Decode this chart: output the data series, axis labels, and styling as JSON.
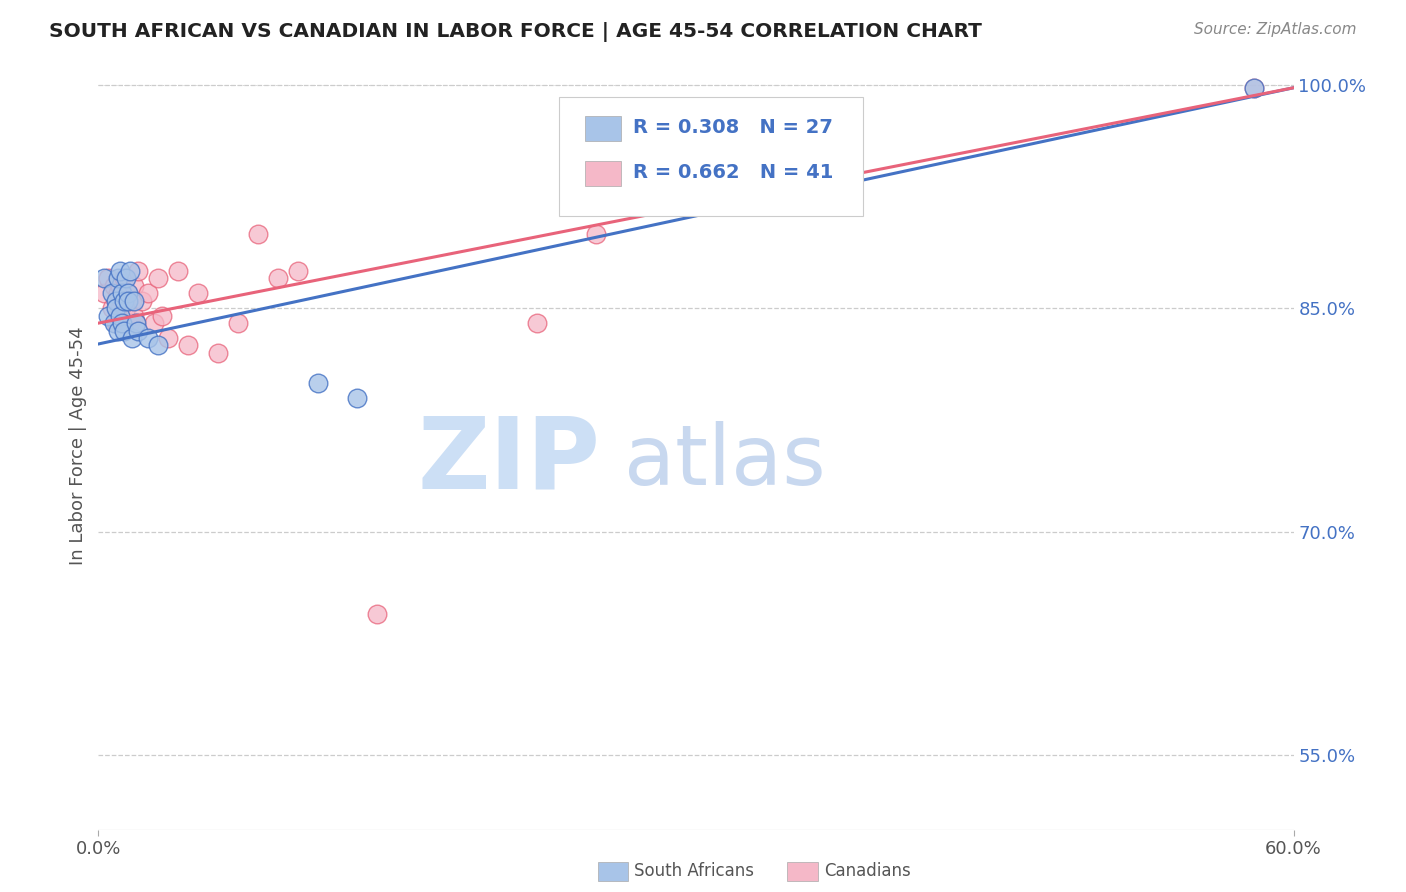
{
  "title": "SOUTH AFRICAN VS CANADIAN IN LABOR FORCE | AGE 45-54 CORRELATION CHART",
  "source": "Source: ZipAtlas.com",
  "ylabel": "In Labor Force | Age 45-54",
  "xlim": [
    0.0,
    0.6
  ],
  "ylim": [
    0.5,
    1.015
  ],
  "ytick_positions": [
    0.55,
    0.7,
    0.85,
    1.0
  ],
  "ytick_labels": [
    "55.0%",
    "70.0%",
    "85.0%",
    "100.0%"
  ],
  "blue_R": 0.308,
  "blue_N": 27,
  "pink_R": 0.662,
  "pink_N": 41,
  "blue_color": "#a8c4e8",
  "pink_color": "#f5b8c8",
  "blue_line_color": "#4472c4",
  "pink_line_color": "#e8637a",
  "watermark_zip_color": "#ccdff5",
  "watermark_atlas_color": "#c8d8ef",
  "blue_scatter_x": [
    0.003,
    0.005,
    0.007,
    0.008,
    0.009,
    0.009,
    0.01,
    0.01,
    0.011,
    0.011,
    0.012,
    0.012,
    0.013,
    0.013,
    0.014,
    0.015,
    0.015,
    0.016,
    0.017,
    0.018,
    0.019,
    0.02,
    0.025,
    0.03,
    0.11,
    0.13,
    0.58
  ],
  "blue_scatter_y": [
    0.87,
    0.845,
    0.86,
    0.84,
    0.855,
    0.85,
    0.87,
    0.835,
    0.875,
    0.845,
    0.86,
    0.84,
    0.855,
    0.835,
    0.87,
    0.86,
    0.855,
    0.875,
    0.83,
    0.855,
    0.84,
    0.835,
    0.83,
    0.825,
    0.8,
    0.79,
    0.998
  ],
  "pink_scatter_x": [
    0.003,
    0.005,
    0.007,
    0.008,
    0.009,
    0.009,
    0.01,
    0.01,
    0.011,
    0.011,
    0.012,
    0.012,
    0.013,
    0.013,
    0.014,
    0.015,
    0.015,
    0.016,
    0.017,
    0.018,
    0.018,
    0.019,
    0.02,
    0.022,
    0.025,
    0.028,
    0.03,
    0.032,
    0.035,
    0.04,
    0.045,
    0.05,
    0.06,
    0.07,
    0.08,
    0.09,
    0.1,
    0.14,
    0.22,
    0.25,
    0.58
  ],
  "pink_scatter_y": [
    0.86,
    0.87,
    0.85,
    0.865,
    0.855,
    0.84,
    0.86,
    0.845,
    0.865,
    0.85,
    0.855,
    0.84,
    0.855,
    0.87,
    0.85,
    0.86,
    0.855,
    0.84,
    0.855,
    0.845,
    0.865,
    0.84,
    0.875,
    0.855,
    0.86,
    0.84,
    0.87,
    0.845,
    0.83,
    0.875,
    0.825,
    0.86,
    0.82,
    0.84,
    0.9,
    0.87,
    0.875,
    0.645,
    0.84,
    0.9,
    0.998
  ],
  "blue_line_x0": 0.0,
  "blue_line_y0": 0.826,
  "blue_line_x1": 0.6,
  "blue_line_y1": 0.998,
  "pink_line_x0": 0.0,
  "pink_line_y0": 0.84,
  "pink_line_x1": 0.6,
  "pink_line_y1": 0.998
}
